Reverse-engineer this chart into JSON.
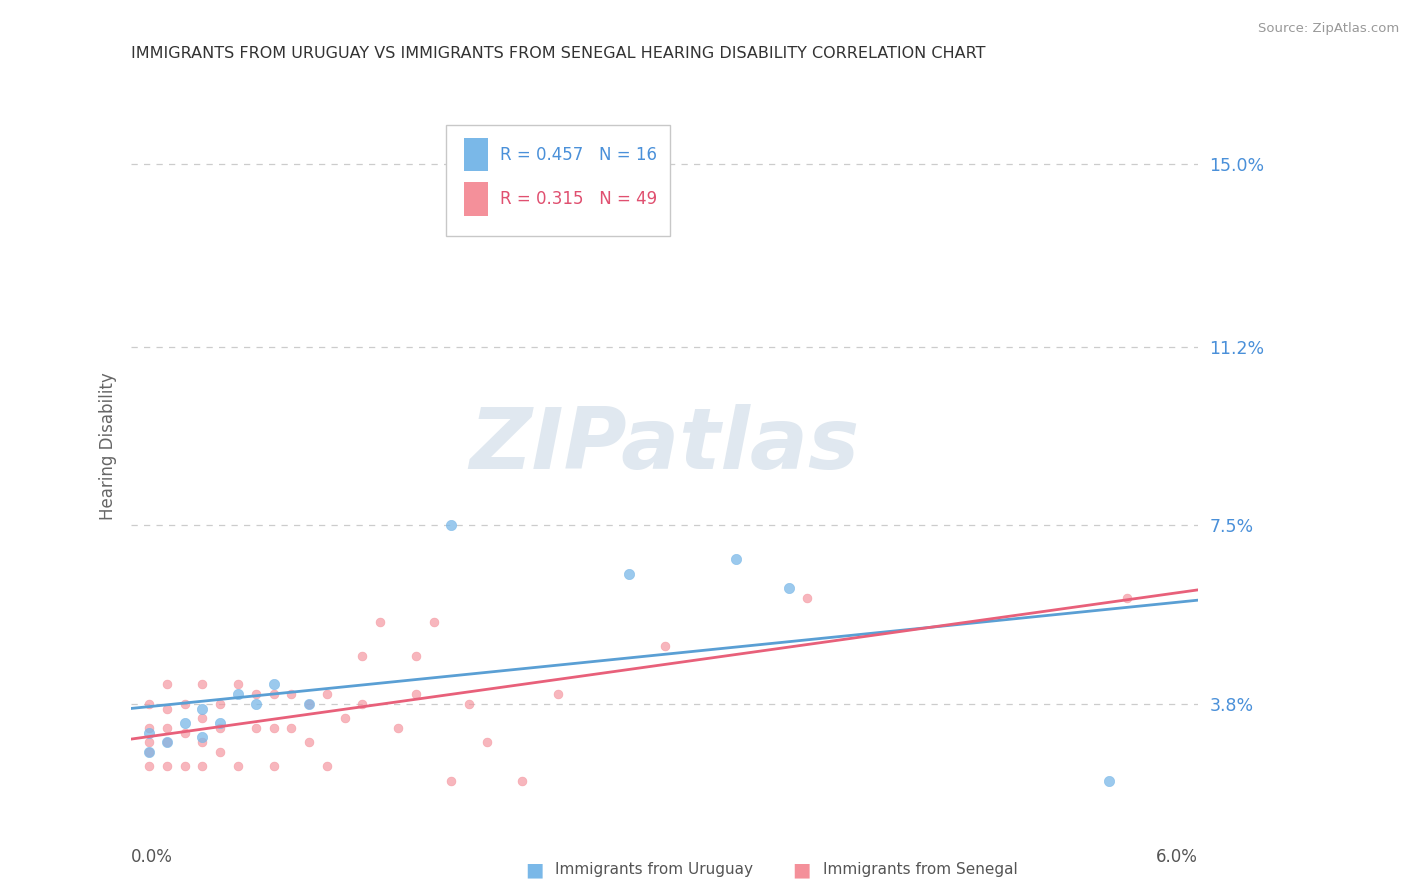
{
  "title": "IMMIGRANTS FROM URUGUAY VS IMMIGRANTS FROM SENEGAL HEARING DISABILITY CORRELATION CHART",
  "source": "Source: ZipAtlas.com",
  "ylabel": "Hearing Disability",
  "ytick_labels": [
    "15.0%",
    "11.2%",
    "7.5%",
    "3.8%"
  ],
  "ytick_values": [
    0.15,
    0.112,
    0.075,
    0.038
  ],
  "xlim": [
    0.0,
    0.06
  ],
  "ylim": [
    0.015,
    0.168
  ],
  "uruguay_color": "#7ab8e8",
  "senegal_color": "#f4909a",
  "uruguay_line_color": "#5a9fd4",
  "senegal_line_color": "#e8607a",
  "uruguay_label": "Immigrants from Uruguay",
  "senegal_label": "Immigrants from Senegal",
  "legend_r_uruguay": "R = 0.457",
  "legend_n_uruguay": "N = 16",
  "legend_r_senegal": "R = 0.315",
  "legend_n_senegal": "N = 49",
  "legend_text_color_blue": "#4a90d9",
  "legend_text_color_pink": "#e05070",
  "watermark": "ZIPatlas",
  "uruguay_x": [
    0.001,
    0.001,
    0.002,
    0.003,
    0.004,
    0.004,
    0.005,
    0.006,
    0.007,
    0.008,
    0.01,
    0.018,
    0.028,
    0.034,
    0.037,
    0.055
  ],
  "uruguay_y": [
    0.028,
    0.032,
    0.03,
    0.034,
    0.031,
    0.037,
    0.034,
    0.04,
    0.038,
    0.042,
    0.038,
    0.075,
    0.065,
    0.068,
    0.062,
    0.022
  ],
  "senegal_x": [
    0.001,
    0.001,
    0.001,
    0.001,
    0.001,
    0.002,
    0.002,
    0.002,
    0.002,
    0.002,
    0.003,
    0.003,
    0.003,
    0.004,
    0.004,
    0.004,
    0.004,
    0.005,
    0.005,
    0.005,
    0.006,
    0.006,
    0.007,
    0.007,
    0.008,
    0.008,
    0.008,
    0.009,
    0.009,
    0.01,
    0.01,
    0.011,
    0.011,
    0.012,
    0.013,
    0.013,
    0.014,
    0.015,
    0.016,
    0.016,
    0.017,
    0.018,
    0.019,
    0.02,
    0.022,
    0.024,
    0.03,
    0.038,
    0.056
  ],
  "senegal_y": [
    0.025,
    0.028,
    0.03,
    0.033,
    0.038,
    0.025,
    0.03,
    0.033,
    0.037,
    0.042,
    0.025,
    0.032,
    0.038,
    0.025,
    0.03,
    0.035,
    0.042,
    0.028,
    0.033,
    0.038,
    0.025,
    0.042,
    0.033,
    0.04,
    0.025,
    0.033,
    0.04,
    0.033,
    0.04,
    0.03,
    0.038,
    0.025,
    0.04,
    0.035,
    0.038,
    0.048,
    0.055,
    0.033,
    0.04,
    0.048,
    0.055,
    0.022,
    0.038,
    0.03,
    0.022,
    0.04,
    0.05,
    0.06,
    0.06
  ]
}
